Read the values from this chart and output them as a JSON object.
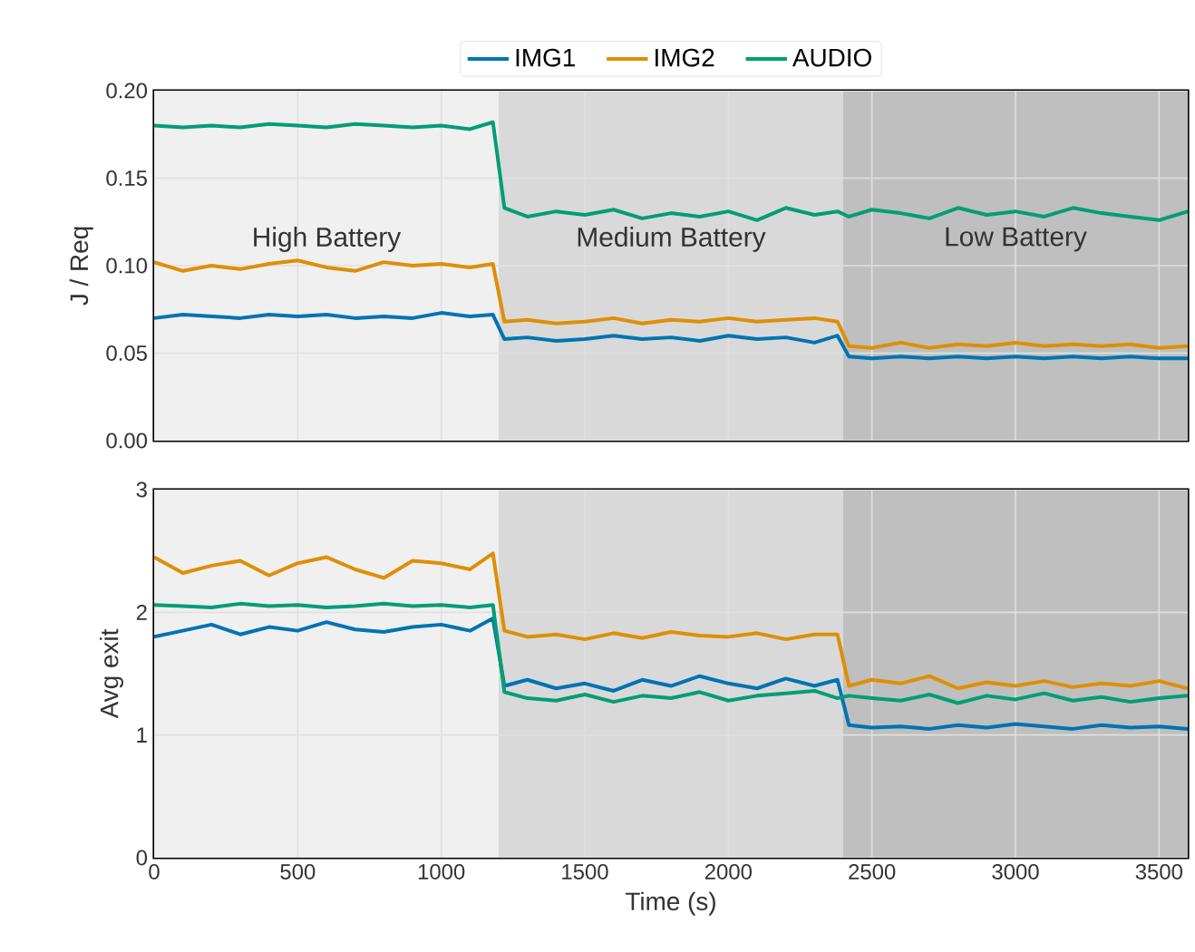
{
  "chart_data": [
    {
      "type": "line",
      "ylabel": "J / Req",
      "xlim": [
        0,
        3600
      ],
      "xticks": [
        0,
        500,
        1000,
        1500,
        2000,
        2500,
        3000,
        3500
      ],
      "ylim": [
        0,
        0.2
      ],
      "yticks": [
        {
          "value": 0,
          "label": "0.00"
        },
        {
          "value": 0.05,
          "label": "0.05"
        },
        {
          "value": 0.1,
          "label": "0.10"
        },
        {
          "value": 0.15,
          "label": "0.15"
        },
        {
          "value": 0.2,
          "label": "0.20"
        }
      ],
      "tick_labels": "y",
      "grid": true,
      "legend": "top",
      "bands": [
        {
          "axis": "x",
          "from": 0,
          "to": 1200,
          "label": "High Battery",
          "color": "#f0f0f0"
        },
        {
          "axis": "x",
          "from": 1200,
          "to": 2400,
          "label": "Medium Battery",
          "color": "#d9d9d9"
        },
        {
          "axis": "x",
          "from": 2400,
          "to": 3600,
          "label": "Low Battery",
          "color": "#bfbfbf"
        }
      ],
      "x": [
        0,
        100,
        200,
        300,
        400,
        500,
        600,
        700,
        800,
        900,
        1000,
        1100,
        1180,
        1220,
        1300,
        1400,
        1500,
        1600,
        1700,
        1800,
        1900,
        2000,
        2100,
        2200,
        2300,
        2380,
        2420,
        2500,
        2600,
        2700,
        2800,
        2900,
        3000,
        3100,
        3200,
        3300,
        3400,
        3500,
        3600
      ],
      "series": [
        {
          "name": "IMG1",
          "color": "#0173b2",
          "values": [
            0.07,
            0.072,
            0.071,
            0.07,
            0.072,
            0.071,
            0.072,
            0.07,
            0.071,
            0.07,
            0.073,
            0.071,
            0.072,
            0.058,
            0.059,
            0.057,
            0.058,
            0.06,
            0.058,
            0.059,
            0.057,
            0.06,
            0.058,
            0.059,
            0.056,
            0.06,
            0.048,
            0.047,
            0.048,
            0.047,
            0.048,
            0.047,
            0.048,
            0.047,
            0.048,
            0.047,
            0.048,
            0.047,
            0.047
          ]
        },
        {
          "name": "IMG2",
          "color": "#de8f05",
          "values": [
            0.102,
            0.097,
            0.1,
            0.098,
            0.101,
            0.103,
            0.099,
            0.097,
            0.102,
            0.1,
            0.101,
            0.099,
            0.101,
            0.068,
            0.069,
            0.067,
            0.068,
            0.07,
            0.067,
            0.069,
            0.068,
            0.07,
            0.068,
            0.069,
            0.07,
            0.068,
            0.054,
            0.053,
            0.056,
            0.053,
            0.055,
            0.054,
            0.056,
            0.054,
            0.055,
            0.054,
            0.055,
            0.053,
            0.054
          ]
        },
        {
          "name": "AUDIO",
          "color": "#029e73",
          "values": [
            0.18,
            0.179,
            0.18,
            0.179,
            0.181,
            0.18,
            0.179,
            0.181,
            0.18,
            0.179,
            0.18,
            0.178,
            0.182,
            0.133,
            0.128,
            0.131,
            0.129,
            0.132,
            0.127,
            0.13,
            0.128,
            0.131,
            0.126,
            0.133,
            0.129,
            0.131,
            0.128,
            0.132,
            0.13,
            0.127,
            0.133,
            0.129,
            0.131,
            0.128,
            0.133,
            0.13,
            0.128,
            0.126,
            0.131
          ]
        }
      ]
    },
    {
      "type": "line",
      "ylabel": "Avg exit",
      "xlabel": "Time (s)",
      "xlim": [
        0,
        3600
      ],
      "xticks": [
        0,
        500,
        1000,
        1500,
        2000,
        2500,
        3000,
        3500
      ],
      "ylim": [
        0,
        3
      ],
      "yticks": [
        0,
        1,
        2,
        3
      ],
      "grid": true,
      "bands": [
        {
          "axis": "x",
          "from": 0,
          "to": 1200,
          "color": "#f0f0f0"
        },
        {
          "axis": "x",
          "from": 1200,
          "to": 2400,
          "color": "#d9d9d9"
        },
        {
          "axis": "x",
          "from": 2400,
          "to": 3600,
          "color": "#bfbfbf"
        }
      ],
      "x": [
        0,
        100,
        200,
        300,
        400,
        500,
        600,
        700,
        800,
        900,
        1000,
        1100,
        1180,
        1220,
        1300,
        1400,
        1500,
        1600,
        1700,
        1800,
        1900,
        2000,
        2100,
        2200,
        2300,
        2380,
        2420,
        2500,
        2600,
        2700,
        2800,
        2900,
        3000,
        3100,
        3200,
        3300,
        3400,
        3500,
        3600
      ],
      "series": [
        {
          "color": "#0173b2",
          "values": [
            1.8,
            1.85,
            1.9,
            1.82,
            1.88,
            1.85,
            1.92,
            1.86,
            1.84,
            1.88,
            1.9,
            1.85,
            1.95,
            1.4,
            1.45,
            1.38,
            1.42,
            1.36,
            1.45,
            1.4,
            1.48,
            1.42,
            1.38,
            1.46,
            1.4,
            1.45,
            1.08,
            1.06,
            1.07,
            1.05,
            1.08,
            1.06,
            1.09,
            1.07,
            1.05,
            1.08,
            1.06,
            1.07,
            1.05
          ]
        },
        {
          "color": "#de8f05",
          "values": [
            2.45,
            2.32,
            2.38,
            2.42,
            2.3,
            2.4,
            2.45,
            2.35,
            2.28,
            2.42,
            2.4,
            2.35,
            2.48,
            1.85,
            1.8,
            1.82,
            1.78,
            1.83,
            1.79,
            1.84,
            1.81,
            1.8,
            1.83,
            1.78,
            1.82,
            1.82,
            1.4,
            1.45,
            1.42,
            1.48,
            1.38,
            1.43,
            1.4,
            1.44,
            1.39,
            1.42,
            1.4,
            1.44,
            1.38
          ]
        },
        {
          "color": "#029e73",
          "values": [
            2.06,
            2.05,
            2.04,
            2.07,
            2.05,
            2.06,
            2.04,
            2.05,
            2.07,
            2.05,
            2.06,
            2.04,
            2.06,
            1.35,
            1.3,
            1.28,
            1.33,
            1.27,
            1.32,
            1.3,
            1.35,
            1.28,
            1.32,
            1.34,
            1.36,
            1.3,
            1.32,
            1.3,
            1.28,
            1.33,
            1.26,
            1.32,
            1.29,
            1.34,
            1.28,
            1.31,
            1.27,
            1.3,
            1.32
          ]
        }
      ]
    }
  ]
}
